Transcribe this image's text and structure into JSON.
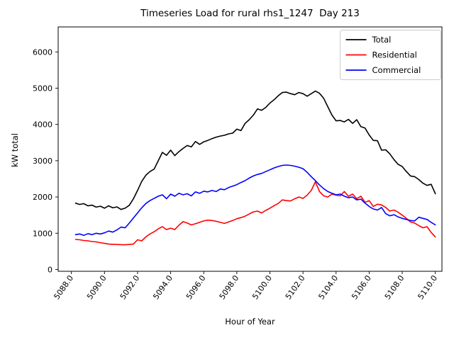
{
  "chart_data": {
    "type": "line",
    "title": "Timeseries Load for rural rhs1_1247  Day 213",
    "xlabel": "Hour of Year",
    "ylabel": "kW total",
    "xlim": [
      5087.2,
      5110.4
    ],
    "ylim": [
      -50,
      6690
    ],
    "grid": false,
    "legend": {
      "position": "upper right",
      "entries": [
        "Total",
        "Residential",
        "Commercial"
      ]
    },
    "xtick_values": [
      5088,
      5090,
      5092,
      5094,
      5096,
      5098,
      5100,
      5102,
      5104,
      5106,
      5108,
      5110
    ],
    "xtick_labels": [
      "5088.0",
      "5090.0",
      "5092.0",
      "5094.0",
      "5096.0",
      "5098.0",
      "5100.0",
      "5102.0",
      "5104.0",
      "5106.0",
      "5108.0",
      "5110.0"
    ],
    "ytick_values": [
      0,
      1000,
      2000,
      3000,
      4000,
      5000,
      6000
    ],
    "ytick_labels": [
      "0",
      "1000",
      "2000",
      "3000",
      "4000",
      "5000",
      "6000"
    ],
    "x": [
      5088.25,
      5088.5,
      5088.75,
      5089.0,
      5089.25,
      5089.5,
      5089.75,
      5090.0,
      5090.25,
      5090.5,
      5090.75,
      5091.0,
      5091.25,
      5091.5,
      5091.75,
      5092.0,
      5092.25,
      5092.5,
      5092.75,
      5093.0,
      5093.25,
      5093.5,
      5093.75,
      5094.0,
      5094.25,
      5094.5,
      5094.75,
      5095.0,
      5095.25,
      5095.5,
      5095.75,
      5096.0,
      5096.25,
      5096.5,
      5096.75,
      5097.0,
      5097.25,
      5097.5,
      5097.75,
      5098.0,
      5098.25,
      5098.5,
      5098.75,
      5099.0,
      5099.25,
      5099.5,
      5099.75,
      5100.0,
      5100.25,
      5100.5,
      5100.75,
      5101.0,
      5101.25,
      5101.5,
      5101.75,
      5102.0,
      5102.25,
      5102.5,
      5102.75,
      5103.0,
      5103.25,
      5103.5,
      5103.75,
      5104.0,
      5104.25,
      5104.5,
      5104.75,
      5105.0,
      5105.25,
      5105.5,
      5105.75,
      5106.0,
      5106.25,
      5106.5,
      5106.75,
      5107.0,
      5107.25,
      5107.5,
      5107.75,
      5108.0,
      5108.25,
      5108.5,
      5108.75,
      5109.0,
      5109.25,
      5109.5,
      5109.75,
      5110.0
    ],
    "series": [
      {
        "name": "Total",
        "color": "#000000",
        "values": [
          1830,
          1795,
          1815,
          1755,
          1775,
          1720,
          1745,
          1690,
          1755,
          1700,
          1725,
          1655,
          1690,
          1770,
          1950,
          2180,
          2430,
          2600,
          2700,
          2770,
          3000,
          3230,
          3150,
          3290,
          3140,
          3250,
          3340,
          3420,
          3380,
          3530,
          3450,
          3520,
          3560,
          3610,
          3650,
          3680,
          3700,
          3740,
          3760,
          3870,
          3830,
          4030,
          4130,
          4260,
          4430,
          4390,
          4470,
          4590,
          4680,
          4790,
          4880,
          4890,
          4850,
          4820,
          4880,
          4850,
          4780,
          4850,
          4920,
          4860,
          4720,
          4490,
          4260,
          4100,
          4110,
          4070,
          4140,
          4030,
          4130,
          3940,
          3900,
          3710,
          3560,
          3550,
          3290,
          3300,
          3190,
          3030,
          2900,
          2840,
          2700,
          2580,
          2560,
          2480,
          2380,
          2320,
          2350,
          2090
        ]
      },
      {
        "name": "Residential",
        "color": "#ff0000",
        "values": [
          830,
          820,
          800,
          790,
          770,
          760,
          740,
          720,
          700,
          695,
          690,
          685,
          680,
          690,
          700,
          820,
          790,
          900,
          980,
          1040,
          1120,
          1180,
          1100,
          1140,
          1100,
          1220,
          1320,
          1280,
          1230,
          1260,
          1300,
          1340,
          1360,
          1350,
          1330,
          1300,
          1270,
          1310,
          1350,
          1400,
          1430,
          1470,
          1530,
          1590,
          1610,
          1560,
          1630,
          1690,
          1760,
          1820,
          1920,
          1900,
          1890,
          1950,
          2000,
          1960,
          2050,
          2180,
          2420,
          2150,
          2030,
          2000,
          2080,
          2050,
          2030,
          2150,
          2020,
          2080,
          1950,
          2020,
          1850,
          1900,
          1740,
          1800,
          1780,
          1710,
          1610,
          1640,
          1580,
          1500,
          1410,
          1310,
          1280,
          1210,
          1150,
          1180,
          1020,
          900
        ]
      },
      {
        "name": "Commercial",
        "color": "#0000ff",
        "values": [
          960,
          980,
          940,
          990,
          960,
          1000,
          980,
          1010,
          1060,
          1030,
          1090,
          1170,
          1150,
          1280,
          1420,
          1560,
          1700,
          1820,
          1900,
          1960,
          2020,
          2060,
          1950,
          2080,
          2020,
          2100,
          2060,
          2090,
          2030,
          2140,
          2100,
          2160,
          2140,
          2180,
          2150,
          2220,
          2200,
          2260,
          2300,
          2340,
          2400,
          2450,
          2520,
          2580,
          2620,
          2650,
          2700,
          2750,
          2800,
          2840,
          2870,
          2880,
          2870,
          2850,
          2820,
          2780,
          2680,
          2560,
          2450,
          2330,
          2230,
          2150,
          2100,
          2060,
          2080,
          2020,
          1980,
          2000,
          1920,
          1940,
          1830,
          1740,
          1670,
          1640,
          1710,
          1540,
          1480,
          1510,
          1450,
          1410,
          1380,
          1350,
          1340,
          1440,
          1410,
          1380,
          1300,
          1230
        ]
      }
    ]
  }
}
